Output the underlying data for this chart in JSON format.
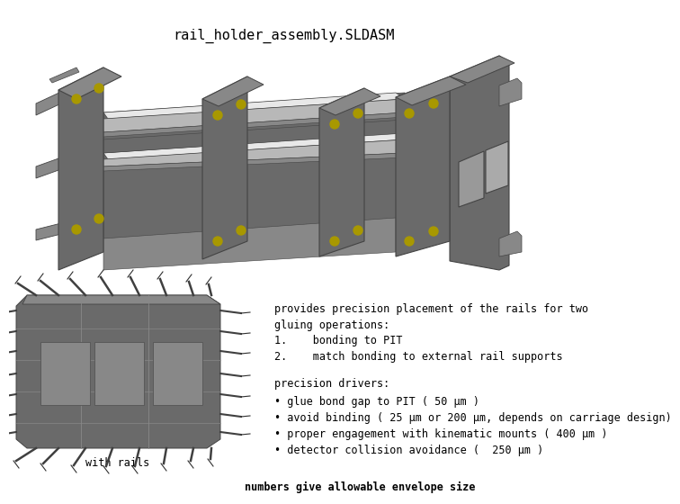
{
  "title": "rail_holder_assembly.SLDASM",
  "bg_color": "#ffffff",
  "text_color": "#000000",
  "title_fontsize": 11,
  "text_fontsize": 8.5,
  "label_with_rails": "with rails",
  "provides_text": "provides precision placement of the rails for two\ngluing operations:",
  "list_items": [
    "bonding to PIT",
    "match bonding to external rail supports"
  ],
  "precision_header": "precision drivers:",
  "bullets": [
    "• glue bond gap to PIT ( 50 μm )",
    "• avoid binding ( 25 μm or 200 μm, depends on carriage design)",
    "• proper engagement with kinematic mounts ( 400 μm )",
    "• detector collision avoidance (  250 μm )"
  ],
  "footer_text": "numbers give allowable envelope size",
  "c_dark": "#6a6a6a",
  "c_mid": "#888888",
  "c_light": "#b8b8b8",
  "c_lighter": "#d0d0d0",
  "c_white": "#e8e8e8",
  "c_yellow": "#a89800",
  "c_edge": "#444444"
}
